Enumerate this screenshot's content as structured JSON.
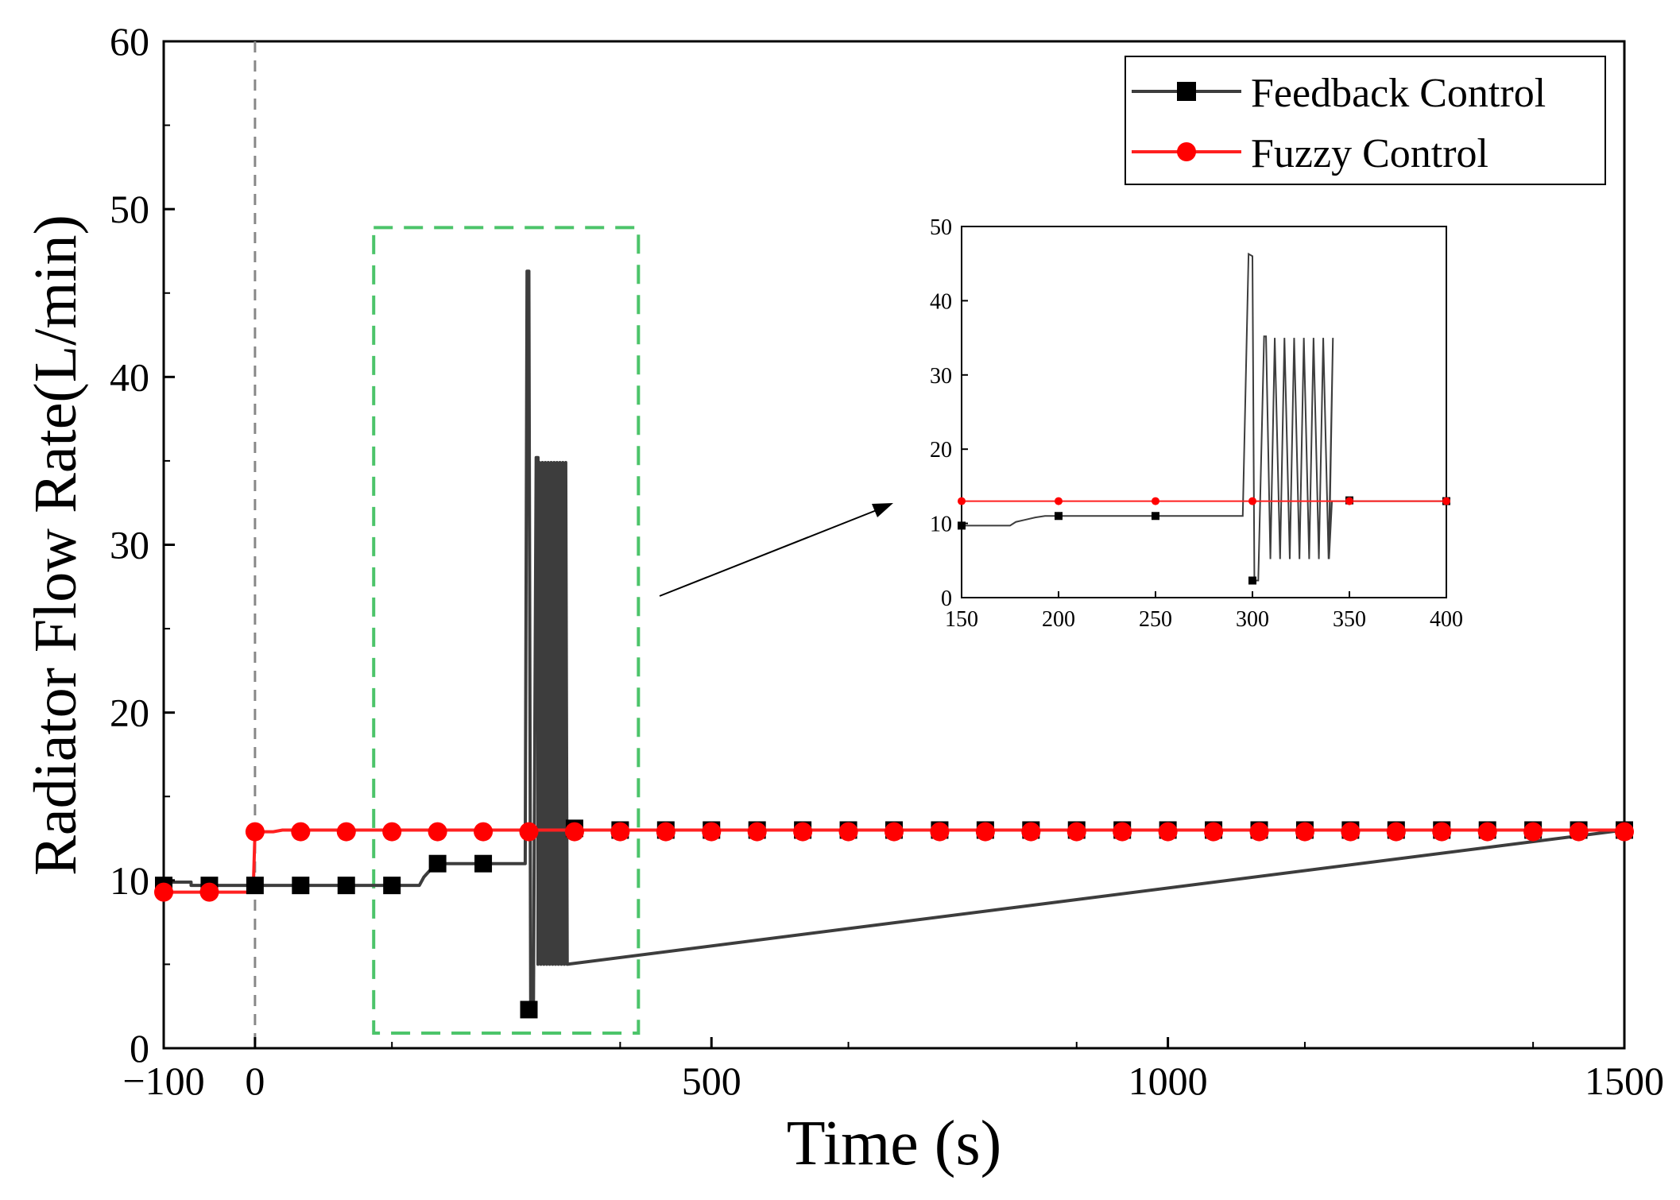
{
  "chart_data": {
    "type": "line",
    "xlabel": "Time (s)",
    "ylabel": "Radiator Flow Rate(L/min)",
    "xlim": [
      -100,
      1500
    ],
    "ylim": [
      0,
      60
    ],
    "xticks": [
      -100,
      0,
      500,
      1000,
      1500
    ],
    "xtick_labels": [
      "−100",
      "0",
      "500",
      "1000",
      "1500"
    ],
    "yticks": [
      0,
      10,
      20,
      30,
      40,
      50,
      60
    ],
    "ytick_labels": [
      "0",
      "10",
      "20",
      "30",
      "40",
      "50",
      "60"
    ],
    "event_marker_x": 0,
    "legend_position": "top-right",
    "series": [
      {
        "name": "Feedback Control",
        "color": "#3d3d3d",
        "marker": "square",
        "step_points": [
          [
            -100,
            9.9
          ],
          [
            -70,
            9.9
          ],
          [
            -70,
            9.7
          ],
          [
            180,
            9.7
          ],
          [
            185,
            10.2
          ],
          [
            190,
            10.5
          ],
          [
            195,
            10.8
          ],
          [
            200,
            11.0
          ],
          [
            296,
            11.0
          ],
          [
            298,
            46.3
          ],
          [
            300,
            46.3
          ],
          [
            302,
            2.3
          ],
          [
            305,
            2.3
          ],
          [
            308,
            35.2
          ],
          [
            310,
            35.2
          ],
          [
            313,
            13.0
          ],
          [
            1500,
            13.0
          ]
        ],
        "oscillation": {
          "x_start": 298,
          "x_end": 340,
          "min": 5.0,
          "max": 34.9,
          "period": 3.2
        },
        "marker_points": [
          [
            -100,
            9.7
          ],
          [
            -50,
            9.7
          ],
          [
            0,
            9.7
          ],
          [
            50,
            9.7
          ],
          [
            100,
            9.7
          ],
          [
            150,
            9.7
          ],
          [
            200,
            11.0
          ],
          [
            250,
            11.0
          ],
          [
            300,
            2.3
          ],
          [
            350,
            13.1
          ],
          [
            400,
            13.0
          ],
          [
            450,
            13.0
          ],
          [
            500,
            13.0
          ],
          [
            550,
            13.0
          ],
          [
            600,
            13.0
          ],
          [
            650,
            13.0
          ],
          [
            700,
            13.0
          ],
          [
            750,
            13.0
          ],
          [
            800,
            13.0
          ],
          [
            850,
            13.0
          ],
          [
            900,
            13.0
          ],
          [
            950,
            13.0
          ],
          [
            1000,
            13.0
          ],
          [
            1050,
            13.0
          ],
          [
            1100,
            13.0
          ],
          [
            1150,
            13.0
          ],
          [
            1200,
            13.0
          ],
          [
            1250,
            13.0
          ],
          [
            1300,
            13.0
          ],
          [
            1350,
            13.0
          ],
          [
            1400,
            13.0
          ],
          [
            1450,
            13.0
          ],
          [
            1500,
            13.0
          ]
        ]
      },
      {
        "name": "Fuzzy Control",
        "color": "#ff2020",
        "marker": "circle",
        "step_points": [
          [
            -100,
            9.3
          ],
          [
            -2,
            9.3
          ],
          [
            0,
            12.9
          ],
          [
            20,
            12.9
          ],
          [
            30,
            13.0
          ],
          [
            1500,
            13.0
          ]
        ],
        "marker_points": [
          [
            -100,
            9.3
          ],
          [
            -50,
            9.3
          ],
          [
            0,
            12.9
          ],
          [
            50,
            12.9
          ],
          [
            100,
            12.9
          ],
          [
            150,
            12.9
          ],
          [
            200,
            12.9
          ],
          [
            250,
            12.9
          ],
          [
            300,
            12.9
          ],
          [
            350,
            12.9
          ],
          [
            400,
            12.9
          ],
          [
            450,
            12.9
          ],
          [
            500,
            12.9
          ],
          [
            550,
            12.9
          ],
          [
            600,
            12.9
          ],
          [
            650,
            12.9
          ],
          [
            700,
            12.9
          ],
          [
            750,
            12.9
          ],
          [
            800,
            12.9
          ],
          [
            850,
            12.9
          ],
          [
            900,
            12.9
          ],
          [
            950,
            12.9
          ],
          [
            1000,
            12.9
          ],
          [
            1050,
            12.9
          ],
          [
            1100,
            12.9
          ],
          [
            1150,
            12.9
          ],
          [
            1200,
            12.9
          ],
          [
            1250,
            12.9
          ],
          [
            1300,
            12.9
          ],
          [
            1350,
            12.9
          ],
          [
            1400,
            12.9
          ],
          [
            1450,
            12.9
          ],
          [
            1500,
            12.9
          ]
        ]
      }
    ],
    "highlight_box": {
      "x_range": [
        130,
        420
      ],
      "y_range": [
        0.9,
        48.9
      ],
      "color": "#4cc46a"
    },
    "inset": {
      "xlim": [
        150,
        400
      ],
      "ylim": [
        0,
        50
      ],
      "xticks": [
        150,
        200,
        250,
        300,
        350,
        400
      ],
      "xtick_labels": [
        "150",
        "200",
        "250",
        "300",
        "350",
        "400"
      ],
      "yticks": [
        0,
        10,
        20,
        30,
        40,
        50
      ],
      "ytick_labels": [
        "0",
        "10",
        "20",
        "30",
        "40",
        "50"
      ],
      "feedback_markers": [
        [
          150,
          9.7
        ],
        [
          200,
          11.0
        ],
        [
          250,
          11.0
        ],
        [
          300,
          2.3
        ],
        [
          350,
          13.1
        ],
        [
          400,
          13.0
        ]
      ],
      "fuzzy_markers": [
        [
          150,
          13.0
        ],
        [
          200,
          13.0
        ],
        [
          250,
          13.0
        ],
        [
          300,
          13.0
        ],
        [
          350,
          13.0
        ],
        [
          400,
          13.0
        ]
      ],
      "feedback_oscillation": {
        "x_start": 306,
        "x_end": 338,
        "min": 5.2,
        "max": 35.0,
        "period": 5.0
      }
    }
  }
}
